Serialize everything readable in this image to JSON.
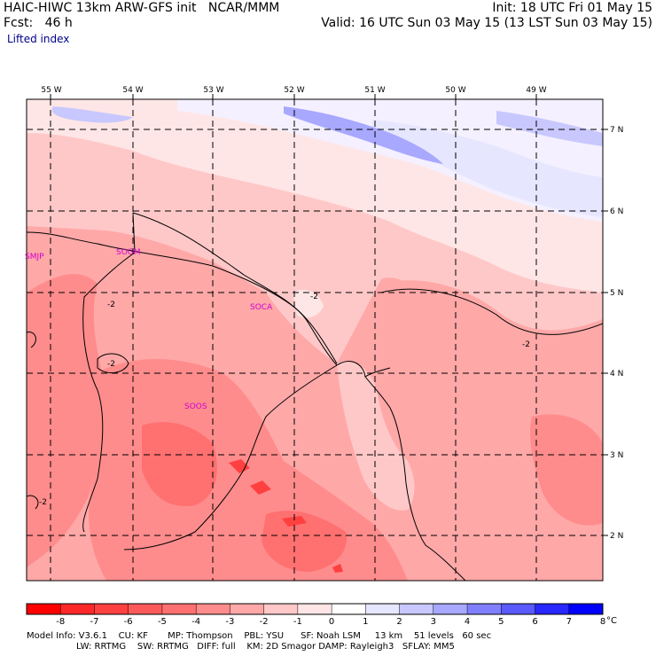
{
  "header": {
    "title": "HAIC-HIWC 13km ARW-GFS init   NCAR/MMM",
    "forecast": "Fcst:   46 h",
    "field": "Lifted index",
    "init": "Init: 18 UTC Fri 01 May 15",
    "valid": "Valid: 16 UTC Sun 03 May 15 (13 LST Sun 03 May 15)"
  },
  "map": {
    "longitude_labels": [
      "55 W",
      "54 W",
      "53 W",
      "52 W",
      "51 W",
      "50 W",
      "49 W"
    ],
    "latitude_labels": [
      "7 N",
      "6 N",
      "5 N",
      "4 N",
      "3 N",
      "2 N"
    ],
    "stations": [
      "SMJP",
      "SOGM",
      "SOCA",
      "SOOS"
    ],
    "contour_labels": [
      "-2",
      "-2",
      "-2",
      "-2",
      "-2"
    ]
  },
  "colorbar": {
    "ticks": [
      "-8",
      "-7",
      "-6",
      "-5",
      "-4",
      "-3",
      "-2",
      "-1",
      "0",
      "1",
      "2",
      "3",
      "4",
      "5",
      "6",
      "7",
      "8"
    ],
    "unit": "°C",
    "colors": [
      "#ff0000",
      "#ff2828",
      "#ff4040",
      "#ff5a5a",
      "#ff7070",
      "#ff8c8c",
      "#ffa8a8",
      "#ffc8c8",
      "#ffe6e6",
      "#ffffff",
      "#e6e6ff",
      "#c8c8ff",
      "#a8a8ff",
      "#8080ff",
      "#5a5aff",
      "#2828ff",
      "#0000ff"
    ]
  },
  "footer": {
    "line1": "Model Info: V3.6.1    CU: KF       MP: Thompson    PBL: YSU      SF: Noah LSM     13 km    51 levels   60 sec",
    "line2": "LW: RRTMG    SW: RRTMG   DIFF: full    KM: 2D Smagor DAMP: Rayleigh3   SFLAY: MM5"
  }
}
